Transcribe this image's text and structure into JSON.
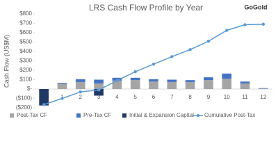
{
  "chart_data": {
    "type": "bar",
    "title": "LRS Cash Flow Profile by Year",
    "y_label": "Cash Flow (US$M)",
    "logo": "GoGold",
    "categories": [
      null,
      "1",
      "2",
      "3",
      "4",
      "5",
      "6",
      "7",
      "8",
      "9",
      "10",
      "11",
      "12"
    ],
    "series": [
      {
        "name": "Post-Tax CF",
        "type": "bar",
        "color": "#a5a5a5",
        "values": [
          0,
          55,
          75,
          60,
          90,
          95,
          80,
          75,
          75,
          95,
          110,
          60,
          5
        ]
      },
      {
        "name": "Pre-Tax CF",
        "type": "bar",
        "color": "#4472c4",
        "values": [
          0,
          10,
          30,
          40,
          30,
          25,
          25,
          25,
          20,
          30,
          55,
          20,
          5
        ]
      },
      {
        "name": "Initial & Expansion Capital",
        "type": "bar",
        "color": "#203864",
        "values": [
          -175,
          0,
          0,
          -70,
          0,
          0,
          0,
          0,
          0,
          0,
          0,
          0,
          0
        ]
      },
      {
        "name": "Cumulative Post-Tax",
        "type": "line",
        "color": "#5b9bd5",
        "values": [
          -165,
          -100,
          -30,
          -10,
          90,
          185,
          265,
          345,
          420,
          510,
          625,
          685,
          690
        ]
      }
    ],
    "ylim": [
      -200,
      800
    ],
    "yticks": [
      {
        "value": -200,
        "label": "($200)"
      },
      {
        "value": -100,
        "label": "($100)"
      },
      {
        "value": 0,
        "label": "$-"
      },
      {
        "value": 100,
        "label": "$100"
      },
      {
        "value": 200,
        "label": "$200"
      },
      {
        "value": 300,
        "label": "$300"
      },
      {
        "value": 400,
        "label": "$400"
      },
      {
        "value": 500,
        "label": "$500"
      },
      {
        "value": 600,
        "label": "$600"
      },
      {
        "value": 700,
        "label": "$700"
      },
      {
        "value": 800,
        "label": "$800"
      }
    ],
    "legend": "bottom"
  }
}
